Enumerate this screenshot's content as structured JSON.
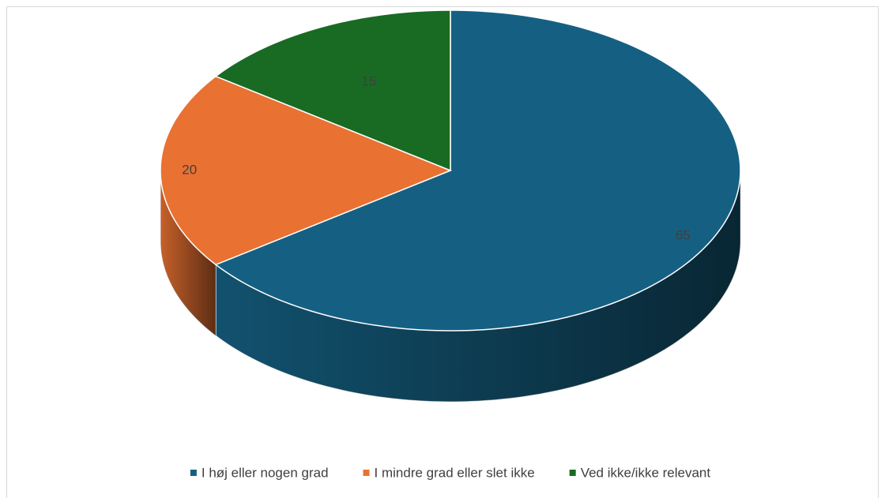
{
  "chart_data": {
    "type": "pie",
    "categories": [
      "I høj eller nogen grad",
      "I mindre grad eller slet ikke",
      "Ved ikke/ikke relevant"
    ],
    "values": [
      65,
      20,
      15
    ],
    "colors": [
      "#156082",
      "#e97132",
      "#196b24"
    ],
    "legend": "bottom"
  }
}
